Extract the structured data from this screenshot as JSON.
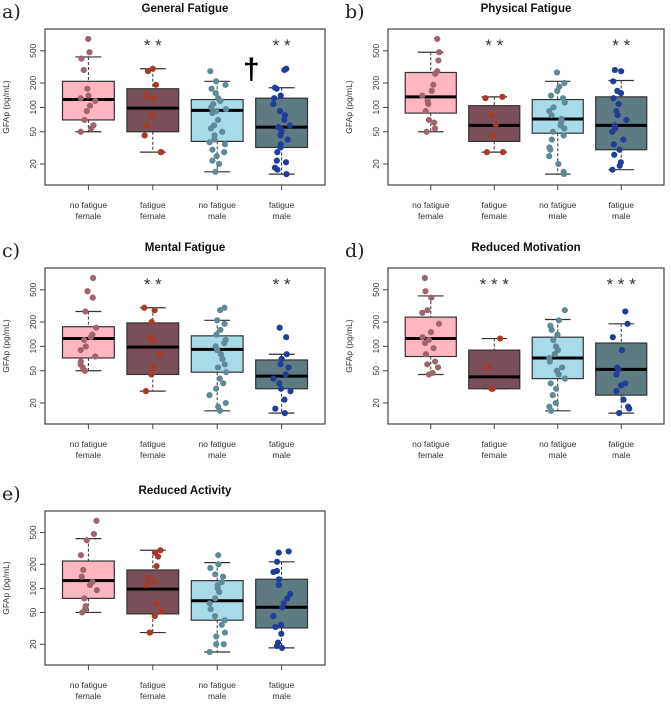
{
  "chart_data": {
    "type": "box",
    "ylabel": "GFAp (pg/mL)",
    "yscale": "log",
    "ylim": [
      11,
      930
    ],
    "yticks": [
      20,
      50,
      100,
      200,
      500
    ],
    "groups": [
      {
        "line1": "no fatigue",
        "line2": "female",
        "fill": "#ffb6c1",
        "point": "#a0646e"
      },
      {
        "line1": "fatigue",
        "line2": "female",
        "fill": "#7a4f5a",
        "point": "#a83a28"
      },
      {
        "line1": "no fatigue",
        "line2": "male",
        "fill": "#a8dbe8",
        "point": "#5f8a96"
      },
      {
        "line1": "fatigue",
        "line2": "male",
        "fill": "#5f7b82",
        "point": "#1f3e9a"
      }
    ],
    "panels": [
      {
        "label": "a)",
        "title": "General Fatigue",
        "annotations": [
          {
            "group": 1,
            "text": "* *"
          },
          {
            "group": 3,
            "text": "* *"
          }
        ],
        "dagger": {
          "text": "†",
          "between": [
            2,
            3
          ]
        },
        "boxes": [
          {
            "lo": 50,
            "q1": 70,
            "med": 125,
            "q3": 210,
            "hi": 420,
            "points": [
              700,
              480,
              400,
              290,
              170,
              140,
              130,
              120,
              105,
              90,
              70,
              60,
              55,
              50
            ]
          },
          {
            "lo": 28,
            "q1": 50,
            "med": 98,
            "q3": 170,
            "hi": 300,
            "points": [
              300,
              280,
              190,
              140,
              130,
              80,
              60,
              45,
              28,
              28
            ]
          },
          {
            "lo": 16,
            "q1": 38,
            "med": 92,
            "q3": 125,
            "hi": 210,
            "points": [
              280,
              210,
              190,
              170,
              150,
              130,
              120,
              110,
              100,
              95,
              90,
              85,
              70,
              60,
              55,
              50,
              45,
              40,
              37,
              35,
              30,
              28,
              25,
              22,
              20,
              16
            ]
          },
          {
            "lo": 15,
            "q1": 32,
            "med": 57,
            "q3": 130,
            "hi": 175,
            "points": [
              300,
              290,
              175,
              170,
              140,
              130,
              110,
              90,
              80,
              70,
              60,
              57,
              55,
              50,
              45,
              40,
              35,
              32,
              28,
              22,
              21,
              18,
              17,
              15
            ]
          }
        ]
      },
      {
        "label": "b)",
        "title": "Physical Fatigue",
        "annotations": [
          {
            "group": 1,
            "text": "* *"
          },
          {
            "group": 3,
            "text": "* *"
          }
        ],
        "boxes": [
          {
            "lo": 50,
            "q1": 85,
            "med": 135,
            "q3": 270,
            "hi": 480,
            "points": [
              700,
              480,
              380,
              280,
              260,
              190,
              160,
              140,
              120,
              110,
              90,
              70,
              65,
              55,
              50
            ]
          },
          {
            "lo": 28,
            "q1": 38,
            "med": 60,
            "q3": 105,
            "hi": 135,
            "points": [
              135,
              130,
              80,
              62,
              45,
              28,
              28
            ]
          },
          {
            "lo": 15,
            "q1": 48,
            "med": 72,
            "q3": 125,
            "hi": 210,
            "points": [
              270,
              200,
              180,
              160,
              140,
              130,
              115,
              100,
              90,
              80,
              72,
              65,
              60,
              55,
              50,
              45,
              40,
              32,
              30,
              25,
              20,
              16,
              15
            ]
          },
          {
            "lo": 17,
            "q1": 30,
            "med": 60,
            "q3": 135,
            "hi": 215,
            "points": [
              290,
              280,
              210,
              160,
              150,
              130,
              110,
              90,
              80,
              70,
              60,
              55,
              50,
              40,
              35,
              30,
              26,
              21,
              19,
              17
            ]
          }
        ]
      },
      {
        "label": "c)",
        "title": "Mental Fatigue",
        "annotations": [
          {
            "group": 1,
            "text": "* *"
          },
          {
            "group": 3,
            "text": "* *"
          }
        ],
        "boxes": [
          {
            "lo": 50,
            "q1": 72,
            "med": 125,
            "q3": 175,
            "hi": 270,
            "points": [
              700,
              480,
              400,
              270,
              170,
              140,
              130,
              120,
              100,
              90,
              75,
              65,
              60,
              55,
              50
            ]
          },
          {
            "lo": 28,
            "q1": 45,
            "med": 98,
            "q3": 195,
            "hi": 300,
            "points": [
              300,
              280,
              200,
              130,
              120,
              80,
              55,
              45,
              28
            ]
          },
          {
            "lo": 16,
            "q1": 48,
            "med": 92,
            "q3": 135,
            "hi": 210,
            "points": [
              300,
              280,
              210,
              190,
              160,
              140,
              120,
              110,
              100,
              90,
              80,
              70,
              60,
              55,
              48,
              40,
              35,
              30,
              25,
              20,
              18,
              16
            ]
          },
          {
            "lo": 15,
            "q1": 30,
            "med": 43,
            "q3": 68,
            "hi": 80,
            "points": [
              170,
              130,
              80,
              70,
              60,
              55,
              45,
              40,
              35,
              30,
              28,
              22,
              17,
              15
            ]
          }
        ]
      },
      {
        "label": "d)",
        "title": "Reduced Motivation",
        "annotations": [
          {
            "group": 1,
            "text": "* * *"
          },
          {
            "group": 3,
            "text": "* * *"
          }
        ],
        "boxes": [
          {
            "lo": 45,
            "q1": 75,
            "med": 125,
            "q3": 230,
            "hi": 420,
            "points": [
              700,
              480,
              400,
              280,
              260,
              190,
              150,
              130,
              120,
              110,
              95,
              80,
              65,
              60,
              55,
              47,
              45
            ]
          },
          {
            "lo": 30,
            "q1": 30,
            "med": 42,
            "q3": 90,
            "hi": 125,
            "points": [
              125,
              55,
              30,
              30
            ]
          },
          {
            "lo": 16,
            "q1": 40,
            "med": 72,
            "q3": 130,
            "hi": 215,
            "points": [
              280,
              210,
              180,
              160,
              140,
              120,
              100,
              90,
              80,
              72,
              65,
              55,
              50,
              45,
              40,
              35,
              30,
              25,
              20,
              18,
              16
            ]
          },
          {
            "lo": 15,
            "q1": 25,
            "med": 52,
            "q3": 110,
            "hi": 190,
            "points": [
              270,
              190,
              130,
              90,
              55,
              52,
              45,
              35,
              33,
              28,
              22,
              18,
              17,
              15
            ]
          }
        ]
      },
      {
        "label": "e)",
        "title": "Reduced Activity",
        "annotations": [],
        "boxes": [
          {
            "lo": 50,
            "q1": 75,
            "med": 125,
            "q3": 220,
            "hi": 420,
            "points": [
              700,
              480,
              400,
              260,
              170,
              140,
              120,
              110,
              95,
              75,
              60,
              55,
              50
            ]
          },
          {
            "lo": 28,
            "q1": 48,
            "med": 98,
            "q3": 170,
            "hi": 300,
            "points": [
              300,
              280,
              250,
              190,
              135,
              120,
              110,
              65,
              52,
              45,
              28,
              28
            ]
          },
          {
            "lo": 16,
            "q1": 40,
            "med": 70,
            "q3": 125,
            "hi": 210,
            "points": [
              260,
              200,
              180,
              150,
              140,
              120,
              110,
              100,
              90,
              75,
              65,
              55,
              45,
              40,
              35,
              28,
              25,
              20,
              20,
              16
            ]
          },
          {
            "lo": 18,
            "q1": 32,
            "med": 58,
            "q3": 130,
            "hi": 215,
            "points": [
              290,
              280,
              215,
              165,
              160,
              130,
              110,
              85,
              75,
              65,
              58,
              45,
              35,
              33,
              27,
              21,
              19,
              18
            ]
          }
        ]
      }
    ]
  }
}
